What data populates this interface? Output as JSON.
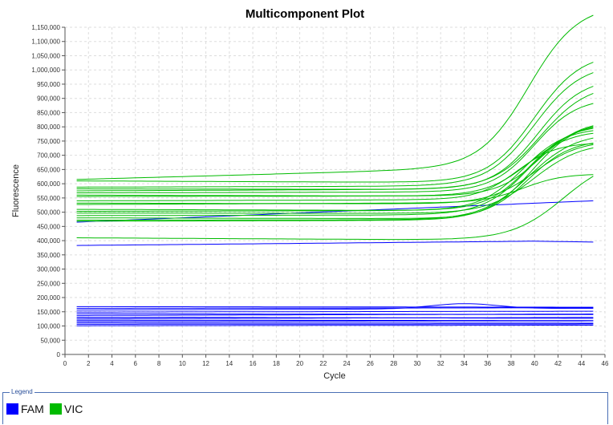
{
  "chart_data": {
    "type": "line",
    "title": "Multicomponent Plot",
    "xlabel": "Cycle",
    "ylabel": "Fluorescence",
    "xlim": [
      0,
      46
    ],
    "ylim": [
      0,
      1150000
    ],
    "x_ticks": [
      0,
      2,
      4,
      6,
      8,
      10,
      12,
      14,
      16,
      18,
      20,
      22,
      24,
      26,
      28,
      30,
      32,
      34,
      36,
      38,
      40,
      42,
      44,
      46
    ],
    "y_ticks": [
      {
        "value": 0,
        "label": "0"
      },
      {
        "value": 50000,
        "label": "50,000"
      },
      {
        "value": 100000,
        "label": "100,000"
      },
      {
        "value": 150000,
        "label": "150,000"
      },
      {
        "value": 200000,
        "label": "200,000"
      },
      {
        "value": 250000,
        "label": "250,000"
      },
      {
        "value": 300000,
        "label": "300,000"
      },
      {
        "value": 350000,
        "label": "350,000"
      },
      {
        "value": 400000,
        "label": "400,000"
      },
      {
        "value": 450000,
        "label": "450,000"
      },
      {
        "value": 500000,
        "label": "500,000"
      },
      {
        "value": 550000,
        "label": "550,000"
      },
      {
        "value": 600000,
        "label": "600,000"
      },
      {
        "value": 650000,
        "label": "650,000"
      },
      {
        "value": 700000,
        "label": "700,000"
      },
      {
        "value": 750000,
        "label": "750,000"
      },
      {
        "value": 800000,
        "label": "800,000"
      },
      {
        "value": 850000,
        "label": "850,000"
      },
      {
        "value": 900000,
        "label": "900,000"
      },
      {
        "value": 950000,
        "label": "950,000"
      },
      {
        "value": 1000000,
        "label": "1,000,000"
      },
      {
        "value": 1050000,
        "label": "1,050,000"
      },
      {
        "value": 1100000,
        "label": "1,100,000"
      },
      {
        "value": 1150000,
        "label": "1,150,000"
      }
    ],
    "grid": true,
    "legend_position": "bottom",
    "series_groups": [
      {
        "name": "FAM",
        "color": "#0000ff",
        "x_start": 1,
        "x_end": 45,
        "curves": [
          {
            "base": 465000,
            "drift": 75000,
            "hump": 0,
            "hump_center": 0,
            "hump_width": 1,
            "end_adjust": 0
          },
          {
            "base": 383000,
            "drift": 17000,
            "hump": 0,
            "hump_center": 0,
            "hump_width": 1,
            "end_adjust": -5000
          },
          {
            "base": 168000,
            "drift": -2000,
            "hump": 0,
            "hump_center": 0,
            "hump_width": 1,
            "end_adjust": 0
          },
          {
            "base": 162000,
            "drift": 2000,
            "hump": 0,
            "hump_center": 0,
            "hump_width": 1,
            "end_adjust": 0
          },
          {
            "base": 156000,
            "drift": 6000,
            "hump": 18000,
            "hump_center": 34,
            "hump_width": 4,
            "end_adjust": 0
          },
          {
            "base": 149000,
            "drift": 3000,
            "hump": 0,
            "hump_center": 0,
            "hump_width": 1,
            "end_adjust": 0
          },
          {
            "base": 143000,
            "drift": -3000,
            "hump": 0,
            "hump_center": 0,
            "hump_width": 1,
            "end_adjust": 0
          },
          {
            "base": 137000,
            "drift": 5000,
            "hump": 0,
            "hump_center": 0,
            "hump_width": 1,
            "end_adjust": 0
          },
          {
            "base": 131000,
            "drift": -4000,
            "hump": 0,
            "hump_center": 0,
            "hump_width": 1,
            "end_adjust": 0
          },
          {
            "base": 126000,
            "drift": 4000,
            "hump": 0,
            "hump_center": 0,
            "hump_width": 1,
            "end_adjust": 0
          },
          {
            "base": 121000,
            "drift": -2000,
            "hump": 0,
            "hump_center": 0,
            "hump_width": 1,
            "end_adjust": 0
          },
          {
            "base": 116000,
            "drift": 2000,
            "hump": 0,
            "hump_center": 0,
            "hump_width": 1,
            "end_adjust": 0
          },
          {
            "base": 111000,
            "drift": -1000,
            "hump": 0,
            "hump_center": 0,
            "hump_width": 1,
            "end_adjust": 0
          },
          {
            "base": 106000,
            "drift": 1000,
            "hump": 0,
            "hump_center": 0,
            "hump_width": 1,
            "end_adjust": 0
          },
          {
            "base": 101000,
            "drift": 2000,
            "hump": 0,
            "hump_center": 0,
            "hump_width": 1,
            "end_adjust": 0
          }
        ]
      },
      {
        "name": "VIC",
        "color": "#00bb00",
        "x_start": 1,
        "x_end": 45,
        "curves": [
          {
            "base": 615000,
            "drift": 50000,
            "rise": 565000,
            "midpoint": 39.5,
            "slope": 0.48
          },
          {
            "base": 610000,
            "drift": -8000,
            "rise": 460000,
            "midpoint": 40.0,
            "slope": 0.5
          },
          {
            "base": 588000,
            "drift": 5000,
            "rise": 430000,
            "midpoint": 40.0,
            "slope": 0.5
          },
          {
            "base": 582000,
            "drift": -3000,
            "rise": 395000,
            "midpoint": 40.3,
            "slope": 0.52
          },
          {
            "base": 575000,
            "drift": 8000,
            "rise": 370000,
            "midpoint": 40.5,
            "slope": 0.5
          },
          {
            "base": 568000,
            "drift": 4000,
            "rise": 330000,
            "midpoint": 40.0,
            "slope": 0.55
          },
          {
            "base": 560000,
            "drift": -5000,
            "rise": 270000,
            "midpoint": 40.5,
            "slope": 0.55
          },
          {
            "base": 555000,
            "drift": 3000,
            "rise": 230000,
            "midpoint": 39.5,
            "slope": 0.55
          },
          {
            "base": 540000,
            "drift": 5000,
            "rise": 200000,
            "midpoint": 38.5,
            "slope": 0.6
          },
          {
            "base": 532000,
            "drift": -4000,
            "rise": 225000,
            "midpoint": 40.0,
            "slope": 0.52
          },
          {
            "base": 527000,
            "drift": 8000,
            "rise": 100000,
            "midpoint": 39.0,
            "slope": 0.6
          },
          {
            "base": 510000,
            "drift": -6000,
            "rise": 305000,
            "midpoint": 39.5,
            "slope": 0.55
          },
          {
            "base": 503000,
            "drift": 4000,
            "rise": 290000,
            "midpoint": 39.0,
            "slope": 0.55
          },
          {
            "base": 497000,
            "drift": -2000,
            "rise": 250000,
            "midpoint": 40.0,
            "slope": 0.5
          },
          {
            "base": 488000,
            "drift": 3000,
            "rise": 325000,
            "midpoint": 39.5,
            "slope": 0.52
          },
          {
            "base": 480000,
            "drift": -4000,
            "rise": 280000,
            "midpoint": 39.5,
            "slope": 0.55
          },
          {
            "base": 472000,
            "drift": 2000,
            "rise": 305000,
            "midpoint": 39.5,
            "slope": 0.5
          },
          {
            "base": 468000,
            "drift": 5000,
            "rise": 350000,
            "midpoint": 39.8,
            "slope": 0.52
          },
          {
            "base": 410000,
            "drift": -10000,
            "rise": 300000,
            "midpoint": 42.5,
            "slope": 0.45
          }
        ]
      }
    ]
  },
  "legend": {
    "title": "Legend",
    "items": [
      {
        "label": "FAM",
        "color": "#0000ff"
      },
      {
        "label": "VIC",
        "color": "#00bb00"
      }
    ]
  }
}
